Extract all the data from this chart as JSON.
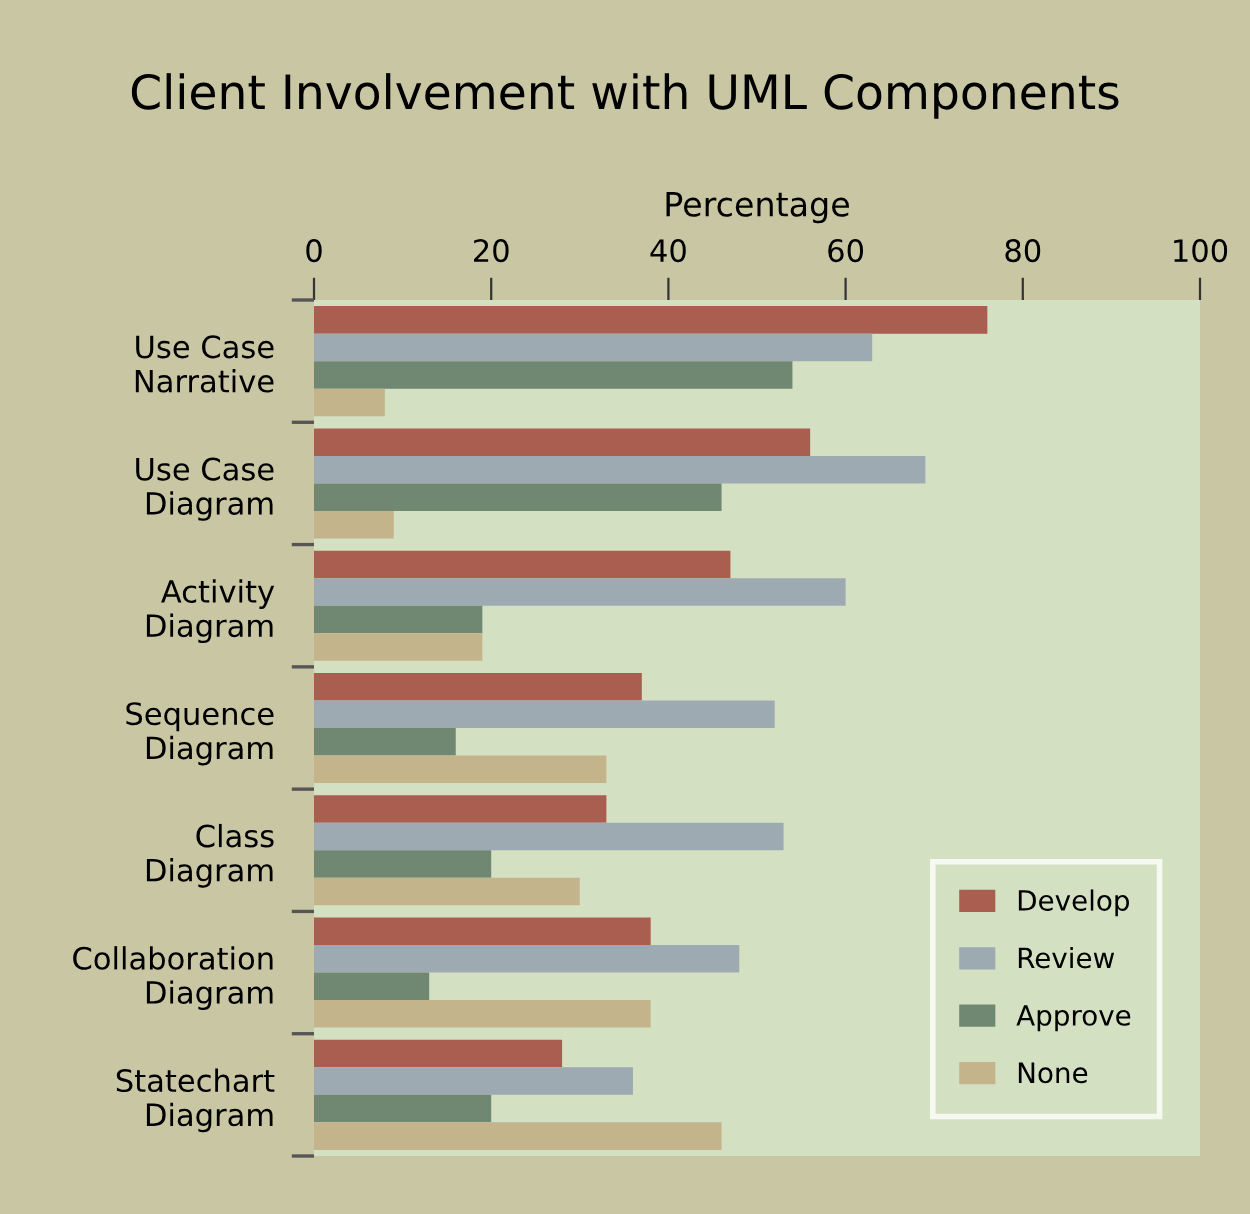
{
  "chart_data": {
    "type": "bar",
    "orientation": "horizontal",
    "title": "Client Involvement with UML Components",
    "xlabel": "Percentage",
    "categories": [
      "Use Case\nNarrative",
      "Use Case\nDiagram",
      "Activity\nDiagram",
      "Sequence\nDiagram",
      "Class\nDiagram",
      "Collaboration\nDiagram",
      "Statechart\nDiagram"
    ],
    "series": [
      {
        "name": "Develop",
        "color": "#a95e50",
        "values": [
          76,
          56,
          47,
          37,
          33,
          38,
          28
        ]
      },
      {
        "name": "Review",
        "color": "#9daab2",
        "values": [
          63,
          69,
          60,
          52,
          53,
          48,
          36
        ]
      },
      {
        "name": "Approve",
        "color": "#708872",
        "values": [
          54,
          46,
          19,
          16,
          20,
          13,
          20
        ]
      },
      {
        "name": "None",
        "color": "#c4b48c",
        "values": [
          8,
          9,
          19,
          33,
          30,
          38,
          46
        ]
      }
    ],
    "xlim": [
      0,
      100
    ],
    "xticks": [
      0,
      20,
      40,
      60,
      80,
      100
    ],
    "grid": false,
    "legend": "bottom right"
  }
}
